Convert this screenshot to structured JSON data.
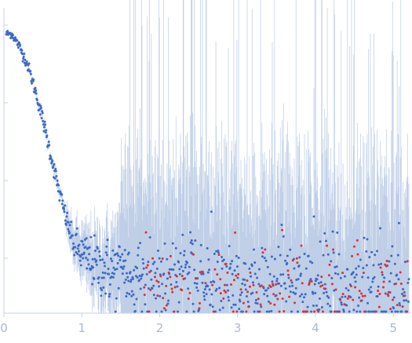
{
  "chart_data": {
    "type": "scatter",
    "title": "",
    "xlabel": "",
    "ylabel": "",
    "xlim": [
      0,
      5.22
    ],
    "y_scale": "log",
    "y_axis_labels_visible": false,
    "x_ticks": [
      "0",
      "1",
      "2",
      "3",
      "4",
      "5"
    ],
    "x_tick_values": [
      0,
      1,
      2,
      3,
      4,
      5
    ],
    "grid": false,
    "legend": "none",
    "colors": {
      "positive_points": "#3d6ac4",
      "negative_points": "#e03030",
      "error_bars": "#b7c9e4",
      "axis": "#c5d2e8",
      "tick_labels": "#a9b8d3"
    },
    "series": [
      {
        "role": "measured points (blue)",
        "description_points": [
          [
            0.03,
            1.0
          ],
          [
            0.1,
            1.0
          ],
          [
            0.2,
            0.97
          ],
          [
            0.3,
            0.93
          ],
          [
            0.4,
            0.87
          ],
          [
            0.5,
            0.8
          ],
          [
            0.6,
            0.72
          ],
          [
            0.7,
            0.64
          ],
          [
            0.8,
            0.57
          ],
          [
            0.9,
            0.51
          ],
          [
            1.0,
            0.49
          ],
          [
            1.2,
            0.46
          ],
          [
            1.5,
            0.44
          ],
          [
            2.0,
            0.43
          ],
          [
            2.5,
            0.42
          ],
          [
            3.0,
            0.41
          ],
          [
            3.5,
            0.41
          ],
          [
            4.0,
            0.41
          ],
          [
            4.5,
            0.41
          ],
          [
            5.0,
            0.41
          ]
        ]
      },
      {
        "role": "negative points (red)",
        "x_range": [
          1.8,
          5.2
        ]
      }
    ]
  }
}
